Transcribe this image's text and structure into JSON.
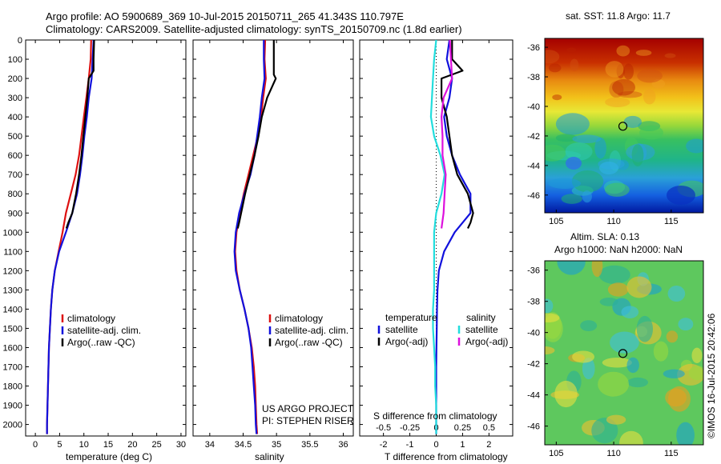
{
  "header": {
    "line1": "Argo profile: AO 5900689_369 10-Jul-2015 20150711_265 41.343S 110.797E",
    "line2": "Climatology: CARS2009. Satellite-adjusted climatology: synTS_20150709.nc (1.8d earlier)"
  },
  "credits": {
    "project": "US ARGO PROJECT",
    "pi": "PI: STEPHEN RISER",
    "timestamp": "©IMOS 16-Jul-2015 20:42:06"
  },
  "colors": {
    "climatology": "#dd1111",
    "satellite": "#1111dd",
    "argo": "#000000",
    "sal_satellite": "#22dddd",
    "sal_argo": "#dd11dd"
  },
  "chart_data": [
    {
      "id": "temperature",
      "type": "line",
      "xlabel": "temperature (deg C)",
      "xlim": [
        -2,
        31
      ],
      "xticks": [
        0,
        5,
        10,
        15,
        20,
        25,
        30
      ],
      "ylim": [
        2060,
        0
      ],
      "yticks": [
        0,
        100,
        200,
        300,
        400,
        500,
        600,
        700,
        800,
        900,
        1000,
        1100,
        1200,
        1300,
        1400,
        1500,
        1600,
        1700,
        1800,
        1900,
        2000
      ],
      "legend": [
        "climatology",
        "satellite-adj. clim.",
        "Argo(..raw -QC)"
      ],
      "series": [
        {
          "name": "climatology",
          "color_key": "climatology",
          "points": [
            [
              11.5,
              0
            ],
            [
              11.4,
              100
            ],
            [
              11.0,
              200
            ],
            [
              10.5,
              300
            ],
            [
              10.0,
              400
            ],
            [
              9.5,
              500
            ],
            [
              9.0,
              600
            ],
            [
              8.3,
              700
            ],
            [
              7.3,
              800
            ],
            [
              6.3,
              900
            ],
            [
              5.6,
              1000
            ],
            [
              4.8,
              1100
            ],
            [
              4.0,
              1200
            ],
            [
              3.5,
              1300
            ],
            [
              3.2,
              1400
            ],
            [
              3.0,
              1500
            ],
            [
              2.8,
              1600
            ],
            [
              2.7,
              1700
            ],
            [
              2.6,
              1800
            ],
            [
              2.5,
              1900
            ],
            [
              2.4,
              2000
            ],
            [
              2.4,
              2050
            ]
          ]
        },
        {
          "name": "satellite-adj. clim.",
          "color_key": "satellite",
          "points": [
            [
              12.0,
              0
            ],
            [
              11.8,
              100
            ],
            [
              11.6,
              200
            ],
            [
              11.0,
              300
            ],
            [
              10.6,
              400
            ],
            [
              10.1,
              500
            ],
            [
              9.7,
              600
            ],
            [
              9.2,
              700
            ],
            [
              8.6,
              800
            ],
            [
              7.6,
              900
            ],
            [
              6.3,
              1000
            ],
            [
              4.9,
              1100
            ],
            [
              4.0,
              1200
            ],
            [
              3.5,
              1300
            ],
            [
              3.2,
              1400
            ],
            [
              3.0,
              1500
            ],
            [
              2.8,
              1600
            ],
            [
              2.7,
              1700
            ],
            [
              2.6,
              1800
            ],
            [
              2.5,
              1900
            ],
            [
              2.4,
              2000
            ],
            [
              2.4,
              2050
            ]
          ]
        },
        {
          "name": "Argo(..raw -QC)",
          "color_key": "argo",
          "points": [
            [
              12.1,
              0
            ],
            [
              12.0,
              100
            ],
            [
              12.0,
              160
            ],
            [
              11.0,
              200
            ],
            [
              10.7,
              300
            ],
            [
              10.3,
              400
            ],
            [
              9.9,
              500
            ],
            [
              9.5,
              600
            ],
            [
              9.0,
              700
            ],
            [
              8.4,
              800
            ],
            [
              7.6,
              900
            ],
            [
              6.8,
              950
            ],
            [
              6.4,
              980
            ]
          ]
        }
      ]
    },
    {
      "id": "salinity",
      "type": "line",
      "xlabel": "salinity",
      "xlim": [
        33.75,
        36.15
      ],
      "xticks": [
        34,
        34.5,
        35,
        35.5,
        36
      ],
      "xtick_labels": [
        "34",
        "34.5",
        "35",
        "35.5",
        "36"
      ],
      "ylim": [
        2060,
        0
      ],
      "legend": [
        "climatology",
        "satellite-adj. clim.",
        "Argo(..raw -QC)"
      ],
      "series": [
        {
          "name": "climatology",
          "color_key": "climatology",
          "points": [
            [
              34.83,
              0
            ],
            [
              34.82,
              100
            ],
            [
              34.84,
              200
            ],
            [
              34.8,
              300
            ],
            [
              34.77,
              400
            ],
            [
              34.72,
              500
            ],
            [
              34.65,
              600
            ],
            [
              34.58,
              700
            ],
            [
              34.51,
              800
            ],
            [
              34.45,
              900
            ],
            [
              34.4,
              1000
            ],
            [
              34.38,
              1100
            ],
            [
              34.4,
              1200
            ],
            [
              34.45,
              1300
            ],
            [
              34.52,
              1400
            ],
            [
              34.58,
              1500
            ],
            [
              34.63,
              1600
            ],
            [
              34.66,
              1700
            ],
            [
              34.68,
              1800
            ],
            [
              34.69,
              1900
            ],
            [
              34.7,
              2000
            ],
            [
              34.71,
              2050
            ]
          ]
        },
        {
          "name": "satellite-adj. clim.",
          "color_key": "satellite",
          "points": [
            [
              34.81,
              0
            ],
            [
              34.81,
              100
            ],
            [
              34.82,
              200
            ],
            [
              34.78,
              300
            ],
            [
              34.75,
              400
            ],
            [
              34.71,
              500
            ],
            [
              34.67,
              600
            ],
            [
              34.61,
              700
            ],
            [
              34.52,
              800
            ],
            [
              34.44,
              900
            ],
            [
              34.39,
              1000
            ],
            [
              34.37,
              1100
            ],
            [
              34.39,
              1200
            ],
            [
              34.45,
              1300
            ],
            [
              34.52,
              1400
            ],
            [
              34.58,
              1500
            ],
            [
              34.62,
              1600
            ],
            [
              34.64,
              1700
            ],
            [
              34.66,
              1800
            ],
            [
              34.68,
              1900
            ],
            [
              34.69,
              2000
            ],
            [
              34.7,
              2050
            ]
          ]
        },
        {
          "name": "Argo(..raw -QC)",
          "color_key": "argo",
          "points": [
            [
              34.96,
              0
            ],
            [
              34.96,
              100
            ],
            [
              34.96,
              180
            ],
            [
              34.99,
              200
            ],
            [
              34.86,
              300
            ],
            [
              34.78,
              400
            ],
            [
              34.73,
              500
            ],
            [
              34.67,
              600
            ],
            [
              34.6,
              700
            ],
            [
              34.53,
              800
            ],
            [
              34.47,
              900
            ],
            [
              34.44,
              950
            ],
            [
              34.42,
              980
            ]
          ]
        }
      ]
    },
    {
      "id": "difference",
      "type": "line",
      "xlabel": "T difference from climatology",
      "xlim": [
        -2.9,
        2.9
      ],
      "xticks": [
        -2,
        -1,
        0,
        1,
        2
      ],
      "x2label": "S difference from climatology",
      "x2ticks": [
        "-0.5",
        "-0.25",
        "0",
        "0.25",
        "0.5"
      ],
      "ylim": [
        2060,
        0
      ],
      "legend_temperature": {
        "title": "temperature",
        "items": [
          "satellite",
          "Argo(-adj)"
        ]
      },
      "legend_salinity": {
        "title": "salinity",
        "items": [
          "satellite",
          "Argo(-adj)"
        ]
      },
      "series": [
        {
          "name": "temperature satellite",
          "color_key": "satellite",
          "points": [
            [
              0.5,
              0
            ],
            [
              0.4,
              100
            ],
            [
              0.6,
              200
            ],
            [
              0.5,
              300
            ],
            [
              0.3,
              400
            ],
            [
              0.4,
              500
            ],
            [
              0.6,
              600
            ],
            [
              0.9,
              700
            ],
            [
              1.3,
              800
            ],
            [
              1.3,
              900
            ],
            [
              0.7,
              1000
            ],
            [
              0.3,
              1100
            ],
            [
              0.1,
              1200
            ],
            [
              0.05,
              1300
            ],
            [
              0.03,
              1400
            ],
            [
              0.02,
              1500
            ],
            [
              0.01,
              1600
            ],
            [
              0.0,
              1700
            ],
            [
              0.0,
              1800
            ],
            [
              0.0,
              1900
            ],
            [
              0.0,
              2000
            ],
            [
              0.0,
              2050
            ]
          ]
        },
        {
          "name": "temperature Argo(-adj)",
          "color_key": "argo",
          "points": [
            [
              0.6,
              0
            ],
            [
              0.6,
              100
            ],
            [
              1.0,
              160
            ],
            [
              0.2,
              200
            ],
            [
              0.2,
              300
            ],
            [
              0.4,
              400
            ],
            [
              0.5,
              500
            ],
            [
              0.6,
              600
            ],
            [
              0.8,
              700
            ],
            [
              1.2,
              800
            ],
            [
              1.4,
              900
            ],
            [
              1.3,
              950
            ],
            [
              1.2,
              980
            ]
          ]
        },
        {
          "name": "salinity satellite",
          "color_key": "sal_satellite",
          "points": [
            [
              0.0,
              0
            ],
            [
              -0.02,
              100
            ],
            [
              -0.03,
              200
            ],
            [
              -0.04,
              300
            ],
            [
              -0.05,
              400
            ],
            [
              -0.02,
              500
            ],
            [
              0.04,
              600
            ],
            [
              0.08,
              700
            ],
            [
              0.05,
              800
            ],
            [
              0.0,
              900
            ],
            [
              -0.02,
              1000
            ],
            [
              -0.02,
              1100
            ],
            [
              -0.02,
              1200
            ],
            [
              -0.02,
              1300
            ],
            [
              -0.03,
              1400
            ],
            [
              -0.03,
              1500
            ],
            [
              -0.02,
              1600
            ],
            [
              -0.01,
              1700
            ],
            [
              -0.01,
              1800
            ],
            [
              0.0,
              1900
            ],
            [
              0.0,
              2000
            ],
            [
              0.0,
              2050
            ]
          ]
        },
        {
          "name": "salinity Argo(-adj)",
          "color_key": "sal_argo",
          "points": [
            [
              0.13,
              0
            ],
            [
              0.14,
              100
            ],
            [
              0.15,
              200
            ],
            [
              0.07,
              300
            ],
            [
              0.05,
              400
            ],
            [
              0.06,
              500
            ],
            [
              0.06,
              600
            ],
            [
              0.09,
              700
            ],
            [
              0.08,
              800
            ],
            [
              0.07,
              900
            ],
            [
              0.05,
              980
            ]
          ]
        }
      ]
    },
    {
      "id": "sst_map",
      "type": "heatmap",
      "title": "sat. SST: 11.8 Argo: 11.7",
      "xlim": [
        104,
        117.8
      ],
      "ylim": [
        -47.2,
        -35.4
      ],
      "xticks": [
        105,
        110,
        115
      ],
      "yticks": [
        -36,
        -38,
        -40,
        -42,
        -44,
        -46
      ],
      "marker": [
        110.797,
        -41.343
      ]
    },
    {
      "id": "sla_map",
      "type": "heatmap",
      "title": "Altim. SLA: 0.13",
      "subtitle": "Argo h1000: NaN h2000: NaN",
      "xlim": [
        104,
        117.8
      ],
      "ylim": [
        -47.2,
        -35.4
      ],
      "xticks": [
        105,
        110,
        115
      ],
      "yticks": [
        -36,
        -38,
        -40,
        -42,
        -44,
        -46
      ],
      "marker": [
        110.797,
        -41.343
      ]
    }
  ]
}
